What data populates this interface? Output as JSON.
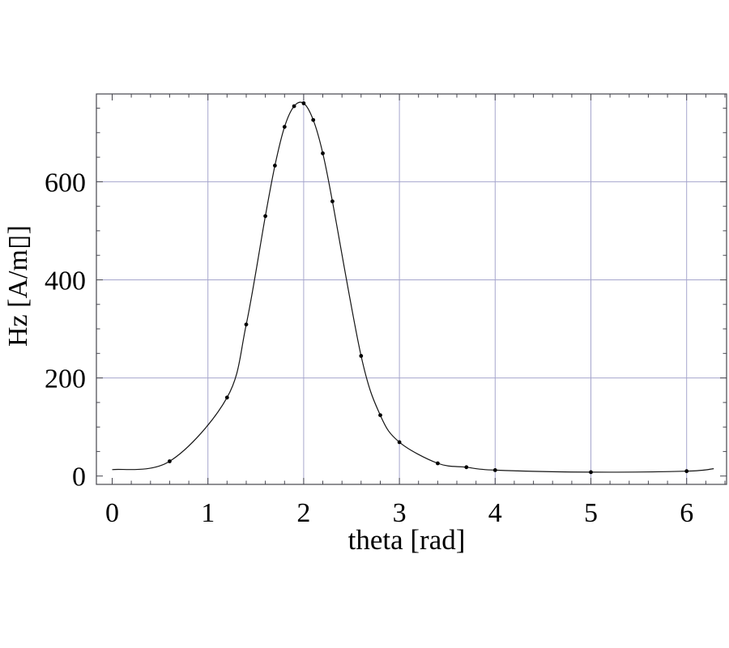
{
  "chart_data": {
    "type": "line",
    "title": "",
    "xlabel": "theta [rad]",
    "ylabel": "Hz [A/m▯]",
    "x_major_ticks": [
      0,
      1,
      2,
      3,
      4,
      5,
      6
    ],
    "y_major_ticks": [
      0,
      200,
      400,
      600
    ],
    "x_minor_step": 0.2,
    "y_minor_step": 50,
    "xlim": [
      -0.165,
      6.417
    ],
    "ylim": [
      -17,
      779
    ],
    "grid": {
      "on": true,
      "x_values": [
        1,
        2,
        3,
        4,
        5,
        6
      ],
      "y_values": [
        200,
        400,
        600
      ],
      "color": "#a6a6cd"
    },
    "series": [
      {
        "name": "Hz",
        "marker": "dot",
        "marker_color": "#000000",
        "line_color": "#141414",
        "points": [
          [
            0.6,
            30
          ],
          [
            1.2,
            160
          ],
          [
            1.4,
            309
          ],
          [
            1.6,
            530
          ],
          [
            1.7,
            633
          ],
          [
            1.8,
            712
          ],
          [
            1.9,
            754
          ],
          [
            2.0,
            760
          ],
          [
            2.1,
            726
          ],
          [
            2.2,
            658
          ],
          [
            2.3,
            560
          ],
          [
            2.6,
            245
          ],
          [
            2.8,
            124
          ],
          [
            3.0,
            69
          ],
          [
            3.4,
            26
          ],
          [
            3.7,
            18
          ],
          [
            4.0,
            12
          ],
          [
            5.0,
            8
          ],
          [
            6.0,
            10
          ]
        ],
        "curve_start": [
          0,
          13
        ],
        "curve_end": [
          6.283,
          15
        ]
      }
    ],
    "frame_color": "#45454e",
    "text_color": "#000000",
    "background": "#ffffff"
  }
}
